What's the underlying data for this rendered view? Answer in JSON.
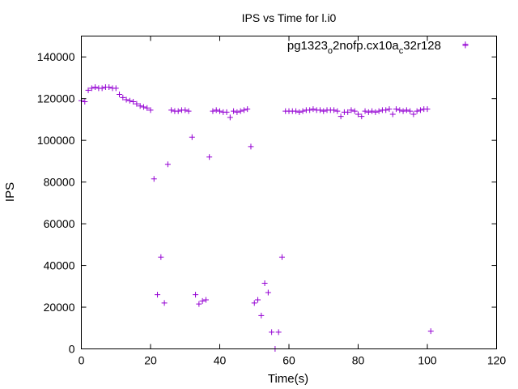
{
  "chart_data": {
    "type": "scatter",
    "title": "IPS vs Time for l.i0",
    "xlabel": "Time(s)",
    "ylabel": "IPS",
    "xlim": [
      0,
      120
    ],
    "ylim": [
      0,
      150000
    ],
    "xticks": [
      0,
      20,
      40,
      60,
      80,
      100,
      120
    ],
    "yticks": [
      0,
      20000,
      40000,
      60000,
      80000,
      100000,
      120000,
      140000
    ],
    "grid": false,
    "legend_position": "top-right",
    "marker": "+",
    "series": [
      {
        "name": "pg1323_o2nofp.cx10a_c32r128",
        "name_parts": {
          "a": "pg1323",
          "b": "o",
          "c": "2nofp.cx10a",
          "d": "c",
          "e": "32r128"
        },
        "color": "#9400d3",
        "points": [
          [
            0,
            119000
          ],
          [
            1,
            118500
          ],
          [
            2,
            124000
          ],
          [
            3,
            125000
          ],
          [
            4,
            125500
          ],
          [
            5,
            125000
          ],
          [
            6,
            125000
          ],
          [
            7,
            125500
          ],
          [
            8,
            125500
          ],
          [
            9,
            125000
          ],
          [
            10,
            125000
          ],
          [
            11,
            122000
          ],
          [
            12,
            120500
          ],
          [
            13,
            119500
          ],
          [
            14,
            119000
          ],
          [
            15,
            118500
          ],
          [
            16,
            117500
          ],
          [
            17,
            116500
          ],
          [
            18,
            116000
          ],
          [
            19,
            115500
          ],
          [
            20,
            114500
          ],
          [
            21,
            81500
          ],
          [
            22,
            26000
          ],
          [
            23,
            44000
          ],
          [
            24,
            22000
          ],
          [
            25,
            88500
          ],
          [
            26,
            114500
          ],
          [
            27,
            114000
          ],
          [
            28,
            114000
          ],
          [
            29,
            114500
          ],
          [
            30,
            114500
          ],
          [
            31,
            114000
          ],
          [
            32,
            101500
          ],
          [
            33,
            26000
          ],
          [
            34,
            21500
          ],
          [
            35,
            23000
          ],
          [
            36,
            23500
          ],
          [
            37,
            92000
          ],
          [
            38,
            114000
          ],
          [
            39,
            114500
          ],
          [
            40,
            114000
          ],
          [
            41,
            113500
          ],
          [
            42,
            113500
          ],
          [
            43,
            111000
          ],
          [
            44,
            114000
          ],
          [
            45,
            113500
          ],
          [
            46,
            114000
          ],
          [
            47,
            114500
          ],
          [
            48,
            115000
          ],
          [
            49,
            97000
          ],
          [
            50,
            22000
          ],
          [
            51,
            23500
          ],
          [
            52,
            16000
          ],
          [
            53,
            31500
          ],
          [
            54,
            27000
          ],
          [
            55,
            8000
          ],
          [
            56,
            0
          ],
          [
            57,
            8000
          ],
          [
            58,
            44000
          ],
          [
            59,
            114000
          ],
          [
            60,
            114000
          ],
          [
            61,
            114000
          ],
          [
            62,
            114000
          ],
          [
            63,
            113500
          ],
          [
            64,
            114000
          ],
          [
            65,
            114500
          ],
          [
            66,
            114500
          ],
          [
            67,
            115000
          ],
          [
            68,
            114500
          ],
          [
            69,
            114500
          ],
          [
            70,
            114000
          ],
          [
            71,
            114500
          ],
          [
            72,
            114500
          ],
          [
            73,
            114500
          ],
          [
            74,
            114000
          ],
          [
            75,
            111500
          ],
          [
            76,
            113500
          ],
          [
            77,
            113500
          ],
          [
            78,
            114500
          ],
          [
            79,
            114000
          ],
          [
            80,
            112500
          ],
          [
            81,
            111500
          ],
          [
            82,
            114000
          ],
          [
            83,
            113500
          ],
          [
            84,
            114000
          ],
          [
            85,
            113500
          ],
          [
            86,
            114000
          ],
          [
            87,
            114500
          ],
          [
            88,
            114500
          ],
          [
            89,
            115000
          ],
          [
            90,
            112500
          ],
          [
            91,
            115000
          ],
          [
            92,
            114500
          ],
          [
            93,
            114000
          ],
          [
            94,
            114500
          ],
          [
            95,
            114000
          ],
          [
            96,
            112500
          ],
          [
            97,
            114000
          ],
          [
            98,
            114500
          ],
          [
            99,
            115000
          ],
          [
            100,
            115000
          ],
          [
            101,
            8500
          ],
          [
            111,
            146000
          ]
        ]
      }
    ]
  }
}
